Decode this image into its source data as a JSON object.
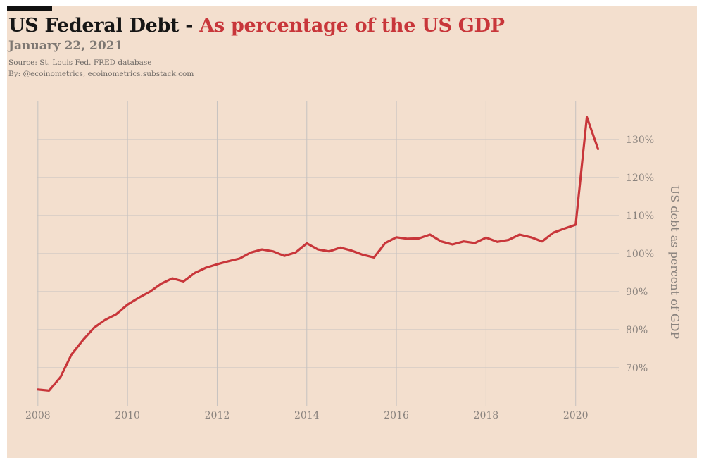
{
  "header": {
    "title_main": "US Federal Debt",
    "title_separator": " - ",
    "title_highlight": "As percentage of the US GDP",
    "date": "January 22, 2021",
    "source": "Source: St. Louis Fed. FRED database",
    "byline": "By: @ecoinometrics, ecoinometrics.substack.com"
  },
  "colors": {
    "background": "#f3dfce",
    "line": "#c8363a",
    "grid": "#c6c2c0",
    "text": "#161616",
    "muted": "#8a837e"
  },
  "chart_data": {
    "type": "line",
    "title": "US Federal Debt - As percentage of the US GDP",
    "subtitle": "January 22, 2021",
    "xlabel": "",
    "ylabel": "US debt as percent of GDP",
    "y_axis_position": "right",
    "grid": true,
    "legend": "none",
    "xlim": [
      2007.5,
      2020.9
    ],
    "ylim": [
      60,
      140
    ],
    "x_ticks": [
      2008,
      2010,
      2012,
      2014,
      2016,
      2018,
      2020
    ],
    "x_tick_labels": [
      "2008",
      "2010",
      "2012",
      "2014",
      "2016",
      "2018",
      "2020"
    ],
    "y_ticks": [
      70,
      80,
      90,
      100,
      110,
      120,
      130
    ],
    "y_tick_labels": [
      "70%",
      "80%",
      "90%",
      "100%",
      "110%",
      "120%",
      "130%"
    ],
    "series": [
      {
        "color": "#c8363a",
        "x": [
          2008.0,
          2008.25,
          2008.5,
          2008.75,
          2009.0,
          2009.25,
          2009.5,
          2009.75,
          2010.0,
          2010.25,
          2010.5,
          2010.75,
          2011.0,
          2011.25,
          2011.5,
          2011.75,
          2012.0,
          2012.25,
          2012.5,
          2012.75,
          2013.0,
          2013.25,
          2013.5,
          2013.75,
          2014.0,
          2014.25,
          2014.5,
          2014.75,
          2015.0,
          2015.25,
          2015.5,
          2015.75,
          2016.0,
          2016.25,
          2016.5,
          2016.75,
          2017.0,
          2017.25,
          2017.5,
          2017.75,
          2018.0,
          2018.25,
          2018.5,
          2018.75,
          2019.0,
          2019.25,
          2019.5,
          2019.75,
          2020.0,
          2020.25,
          2020.5
        ],
        "values": [
          64.3,
          64.0,
          67.5,
          73.5,
          77.2,
          80.5,
          82.6,
          84.1,
          86.6,
          88.4,
          90.0,
          92.1,
          93.5,
          92.7,
          94.9,
          96.3,
          97.2,
          98.0,
          98.7,
          100.3,
          101.1,
          100.6,
          99.4,
          100.3,
          102.7,
          101.1,
          100.6,
          101.6,
          100.8,
          99.7,
          99.0,
          102.8,
          104.3,
          103.9,
          104.0,
          105.0,
          103.2,
          102.4,
          103.2,
          102.8,
          104.2,
          103.1,
          103.6,
          105.0,
          104.3,
          103.2,
          105.5,
          106.6,
          107.6,
          135.9,
          127.5
        ]
      }
    ]
  }
}
